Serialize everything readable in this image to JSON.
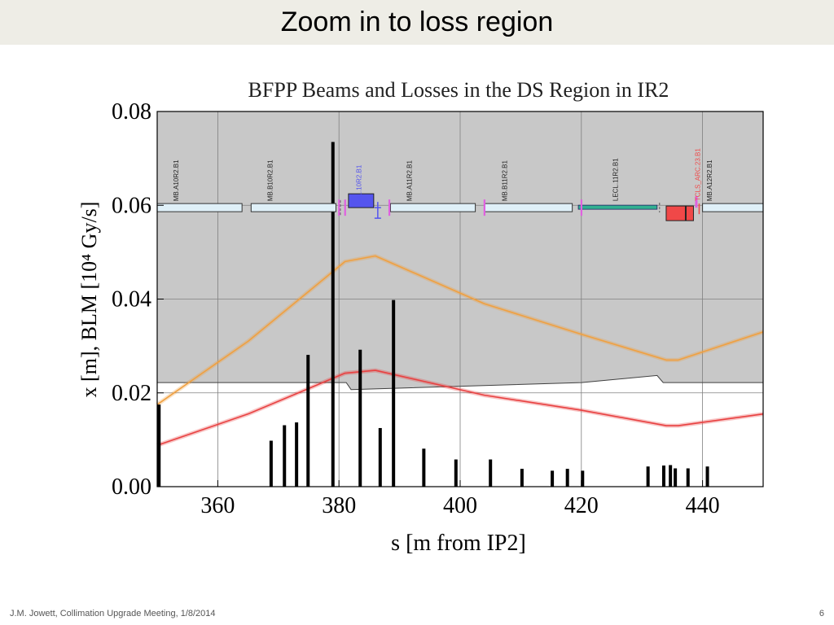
{
  "slide": {
    "title": "Zoom in to loss region",
    "footer": "J.M. Jowett, Collimation Upgrade Meeting, 1/8/2014",
    "page_number": "6"
  },
  "chart_data": {
    "type": "line",
    "title": "BFPP Beams and Losses in the DS Region in IR2",
    "xlabel": "s [m from IP2]",
    "ylabel": "x [m],  BLM [10⁴ Gy/s]",
    "xlim": [
      350,
      450
    ],
    "ylim": [
      0,
      0.08
    ],
    "x_ticks": [
      360,
      380,
      400,
      420,
      440
    ],
    "y_ticks": [
      "0.00",
      "0.02",
      "0.04",
      "0.06",
      "0.08"
    ],
    "grid": true,
    "colors": {
      "shade": "#c8c8c8",
      "orange": "#f0a040",
      "red": "#e84040",
      "aperture": "#404040",
      "magnet_fill": "#dff0f8",
      "quad_blue": "#5555ee",
      "lecl_teal": "#30b090",
      "collimator_red": "#f04848",
      "marker_pink": "#e060e0"
    },
    "aperture": [
      [
        350,
        0.0222
      ],
      [
        381.2,
        0.0222
      ],
      [
        382,
        0.0207
      ],
      [
        420,
        0.0222
      ],
      [
        432.5,
        0.0237
      ],
      [
        433.5,
        0.0222
      ],
      [
        450,
        0.0222
      ]
    ],
    "series": [
      {
        "color": "orange",
        "x": [
          350,
          365,
          381,
          386,
          404,
          420,
          434,
          436,
          450
        ],
        "y": [
          0.0175,
          0.031,
          0.048,
          0.0492,
          0.039,
          0.0325,
          0.027,
          0.027,
          0.033
        ]
      },
      {
        "color": "red",
        "x": [
          350,
          365,
          381,
          386,
          404,
          420,
          434,
          436,
          450
        ],
        "y": [
          0.0088,
          0.0155,
          0.0242,
          0.0248,
          0.0195,
          0.0163,
          0.013,
          0.013,
          0.0155
        ]
      }
    ],
    "blm_bars": {
      "x": [
        350.3,
        368.8,
        371,
        373,
        374.9,
        379,
        383.5,
        386.8,
        389,
        394,
        399.3,
        405,
        410.2,
        415.2,
        417.7,
        420.2,
        431,
        433.6,
        434.7,
        435.5,
        437.6,
        440.8
      ],
      "y": [
        0.0175,
        0.0098,
        0.0131,
        0.0137,
        0.0281,
        0.0735,
        0.0292,
        0.0125,
        0.0398,
        0.0081,
        0.0058,
        0.0058,
        0.0038,
        0.0034,
        0.0038,
        0.0034,
        0.0043,
        0.0045,
        0.0046,
        0.0039,
        0.0039,
        0.0043
      ]
    },
    "elements": [
      {
        "label": "MB.A10R2.B1",
        "kind": "dipole",
        "s": [
          350,
          364
        ]
      },
      {
        "label": "MB.B10R2.B1",
        "kind": "dipole",
        "s": [
          365.5,
          379.5
        ]
      },
      {
        "label": "ML.10R2.B1",
        "kind": "quad",
        "s": [
          381.3,
          386
        ]
      },
      {
        "label": "MB.A11R2.B1",
        "kind": "dipole",
        "s": [
          388.5,
          402.5
        ]
      },
      {
        "label": "MB.B11R2.B1",
        "kind": "dipole",
        "s": [
          404,
          418.5
        ]
      },
      {
        "label": "LECL.11R2.B1",
        "kind": "lecl",
        "s": [
          419.5,
          432.5
        ]
      },
      {
        "label": "TCLS_ARC.23.B1",
        "kind": "collimator",
        "s": [
          434,
          438.5
        ]
      },
      {
        "label": "MB.A12R2.B1",
        "kind": "dipole",
        "s": [
          440,
          450
        ]
      }
    ]
  }
}
